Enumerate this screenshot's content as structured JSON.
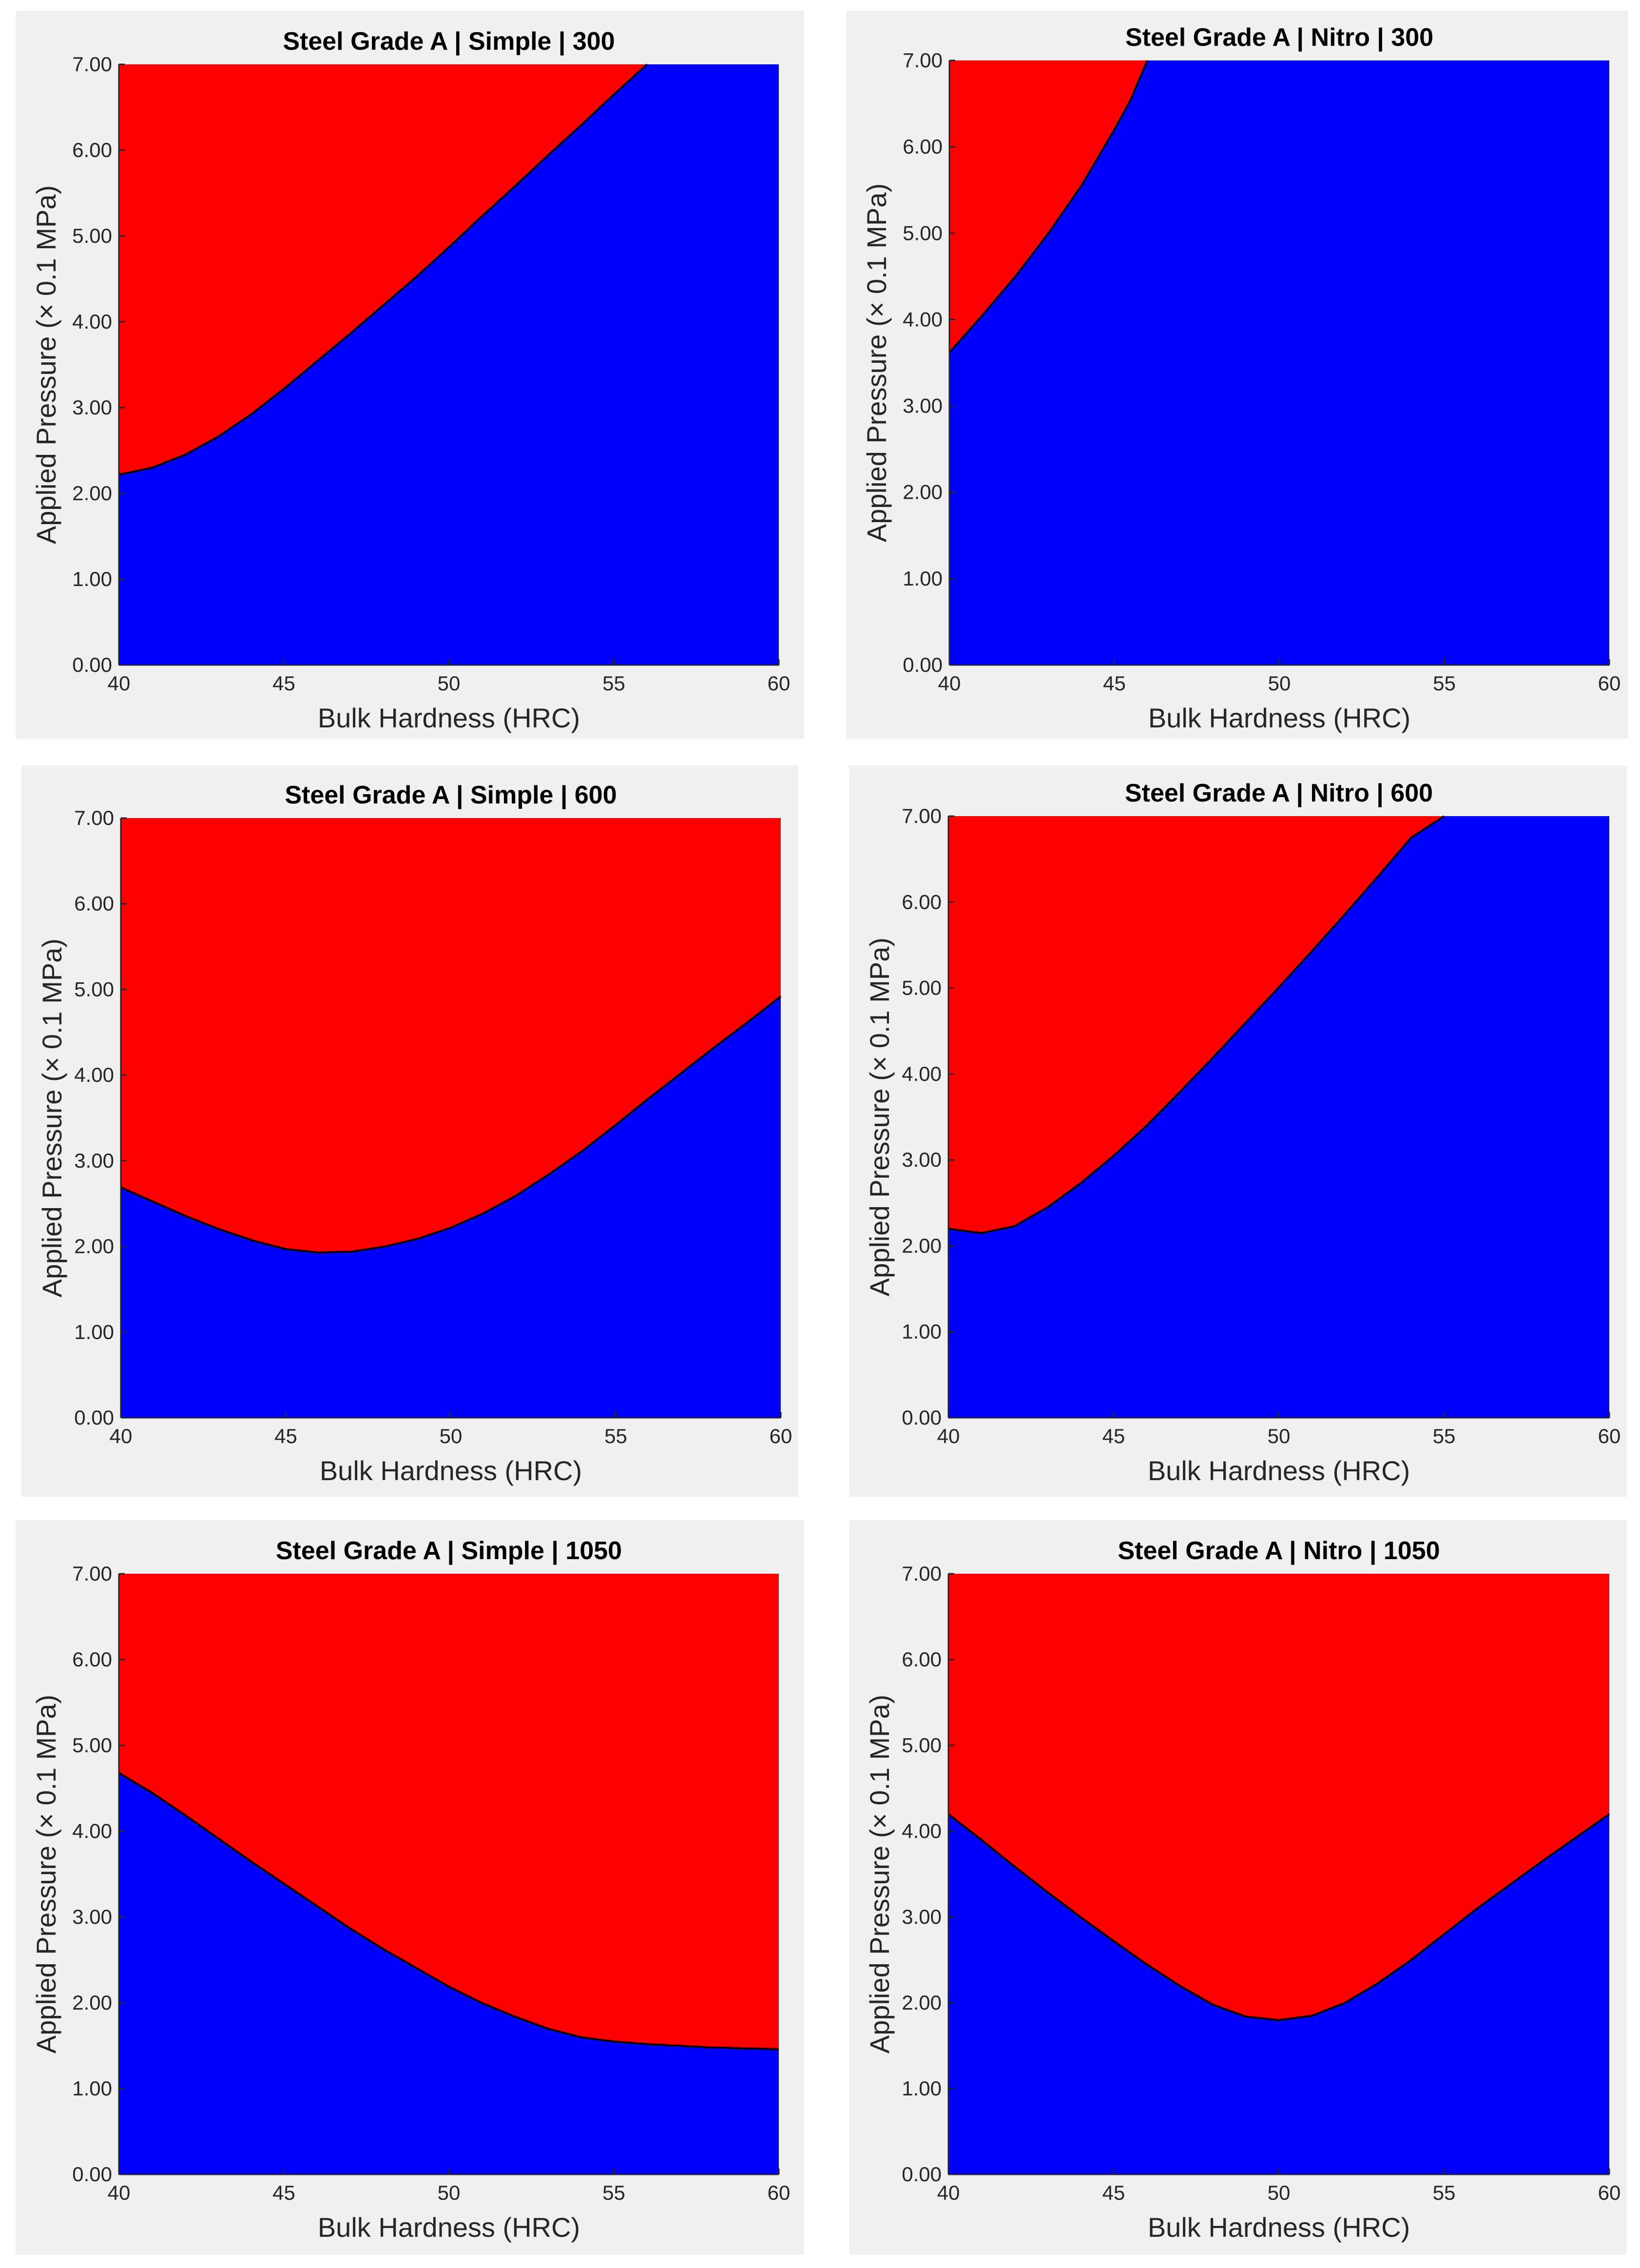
{
  "figure": {
    "background": "#ffffff",
    "panel_background": "#f0f0f0",
    "safe_color": "#0000ff",
    "failure_color": "#ff0000",
    "boundary_color": "#000000"
  },
  "chart_data": [
    {
      "type": "area",
      "title": "Steel Grade A | Simple | 300",
      "xlabel": "Bulk Hardness (HRC)",
      "ylabel": "Applied Pressure (× 0.1 MPa)",
      "xlim": [
        40,
        60
      ],
      "ylim": [
        0,
        7
      ],
      "x_ticks": [
        "40",
        "45",
        "50",
        "55",
        "60"
      ],
      "y_ticks": [
        "0.00",
        "1.00",
        "2.00",
        "3.00",
        "4.00",
        "5.00",
        "6.00",
        "7.00"
      ],
      "x": [
        40,
        41,
        42,
        43,
        44,
        45,
        46,
        47,
        48,
        49,
        50,
        51,
        52,
        53,
        54,
        55,
        56
      ],
      "boundary": [
        2.22,
        2.3,
        2.45,
        2.66,
        2.92,
        3.22,
        3.54,
        3.86,
        4.19,
        4.52,
        4.87,
        5.23,
        5.58,
        5.94,
        6.29,
        6.65,
        7.0
      ]
    },
    {
      "type": "area",
      "title": "Steel Grade A | Nitro | 300",
      "xlabel": "Bulk Hardness (HRC)",
      "ylabel": "Applied Pressure (× 0.1 MPa)",
      "xlim": [
        40,
        60
      ],
      "ylim": [
        0,
        7
      ],
      "x_ticks": [
        "40",
        "45",
        "50",
        "55",
        "60"
      ],
      "y_ticks": [
        "0.00",
        "1.00",
        "2.00",
        "3.00",
        "4.00",
        "5.00",
        "6.00",
        "7.00"
      ],
      "x": [
        40,
        41,
        42,
        43,
        44,
        45,
        45.5,
        46
      ],
      "boundary": [
        3.62,
        4.05,
        4.5,
        5.0,
        5.55,
        6.2,
        6.55,
        7.0
      ]
    },
    {
      "type": "area",
      "title": "Steel Grade A | Simple | 600",
      "xlabel": "Bulk Hardness (HRC)",
      "ylabel": "Applied Pressure (× 0.1 MPa)",
      "xlim": [
        40,
        60
      ],
      "ylim": [
        0,
        7
      ],
      "x_ticks": [
        "40",
        "45",
        "50",
        "55",
        "60"
      ],
      "y_ticks": [
        "0.00",
        "1.00",
        "2.00",
        "3.00",
        "4.00",
        "5.00",
        "6.00",
        "7.00"
      ],
      "x": [
        40,
        41,
        42,
        43,
        44,
        45,
        46,
        47,
        48,
        49,
        50,
        51,
        52,
        53,
        54,
        55,
        56,
        57,
        58,
        59,
        60
      ],
      "boundary": [
        2.69,
        2.52,
        2.35,
        2.2,
        2.07,
        1.97,
        1.93,
        1.94,
        2.0,
        2.09,
        2.22,
        2.39,
        2.6,
        2.85,
        3.12,
        3.42,
        3.73,
        4.03,
        4.33,
        4.62,
        4.92
      ]
    },
    {
      "type": "area",
      "title": "Steel Grade A | Nitro | 600",
      "xlabel": "Bulk Hardness (HRC)",
      "ylabel": "Applied Pressure (× 0.1 MPa)",
      "xlim": [
        40,
        60
      ],
      "ylim": [
        0,
        7
      ],
      "x_ticks": [
        "40",
        "45",
        "50",
        "55",
        "60"
      ],
      "y_ticks": [
        "0.00",
        "1.00",
        "2.00",
        "3.00",
        "4.00",
        "5.00",
        "6.00",
        "7.00"
      ],
      "x": [
        40,
        41,
        42,
        43,
        44,
        45,
        46,
        47,
        48,
        49,
        50,
        51,
        52,
        53,
        54,
        55
      ],
      "boundary": [
        2.2,
        2.15,
        2.23,
        2.45,
        2.73,
        3.05,
        3.4,
        3.79,
        4.19,
        4.6,
        5.01,
        5.43,
        5.86,
        6.3,
        6.75,
        7.0
      ]
    },
    {
      "type": "area",
      "title": "Steel Grade A | Simple | 1050",
      "xlabel": "Bulk Hardness (HRC)",
      "ylabel": "Applied Pressure (× 0.1 MPa)",
      "xlim": [
        40,
        60
      ],
      "ylim": [
        0,
        7
      ],
      "x_ticks": [
        "40",
        "45",
        "50",
        "55",
        "60"
      ],
      "y_ticks": [
        "0.00",
        "1.00",
        "2.00",
        "3.00",
        "4.00",
        "5.00",
        "6.00",
        "7.00"
      ],
      "x": [
        40,
        41,
        42,
        43,
        44,
        45,
        46,
        47,
        48,
        49,
        50,
        51,
        52,
        53,
        54,
        55,
        56,
        57,
        58,
        59,
        60
      ],
      "boundary": [
        4.68,
        4.45,
        4.19,
        3.92,
        3.65,
        3.39,
        3.13,
        2.87,
        2.63,
        2.41,
        2.19,
        2.0,
        1.84,
        1.7,
        1.6,
        1.55,
        1.52,
        1.5,
        1.48,
        1.47,
        1.46
      ]
    },
    {
      "type": "area",
      "title": "Steel Grade A | Nitro | 1050",
      "xlabel": "Bulk Hardness (HRC)",
      "ylabel": "Applied Pressure (× 0.1 MPa)",
      "xlim": [
        40,
        60
      ],
      "ylim": [
        0,
        7
      ],
      "x_ticks": [
        "40",
        "45",
        "50",
        "55",
        "60"
      ],
      "y_ticks": [
        "0.00",
        "1.00",
        "2.00",
        "3.00",
        "4.00",
        "5.00",
        "6.00",
        "7.00"
      ],
      "x": [
        40,
        41,
        42,
        43,
        44,
        45,
        46,
        47,
        48,
        49,
        50,
        51,
        52,
        53,
        54,
        55,
        56,
        57,
        58,
        59,
        60
      ],
      "boundary": [
        4.2,
        3.9,
        3.59,
        3.29,
        3.0,
        2.72,
        2.45,
        2.2,
        1.98,
        1.84,
        1.8,
        1.85,
        2.0,
        2.23,
        2.5,
        2.8,
        3.1,
        3.38,
        3.66,
        3.93,
        4.2
      ]
    }
  ]
}
